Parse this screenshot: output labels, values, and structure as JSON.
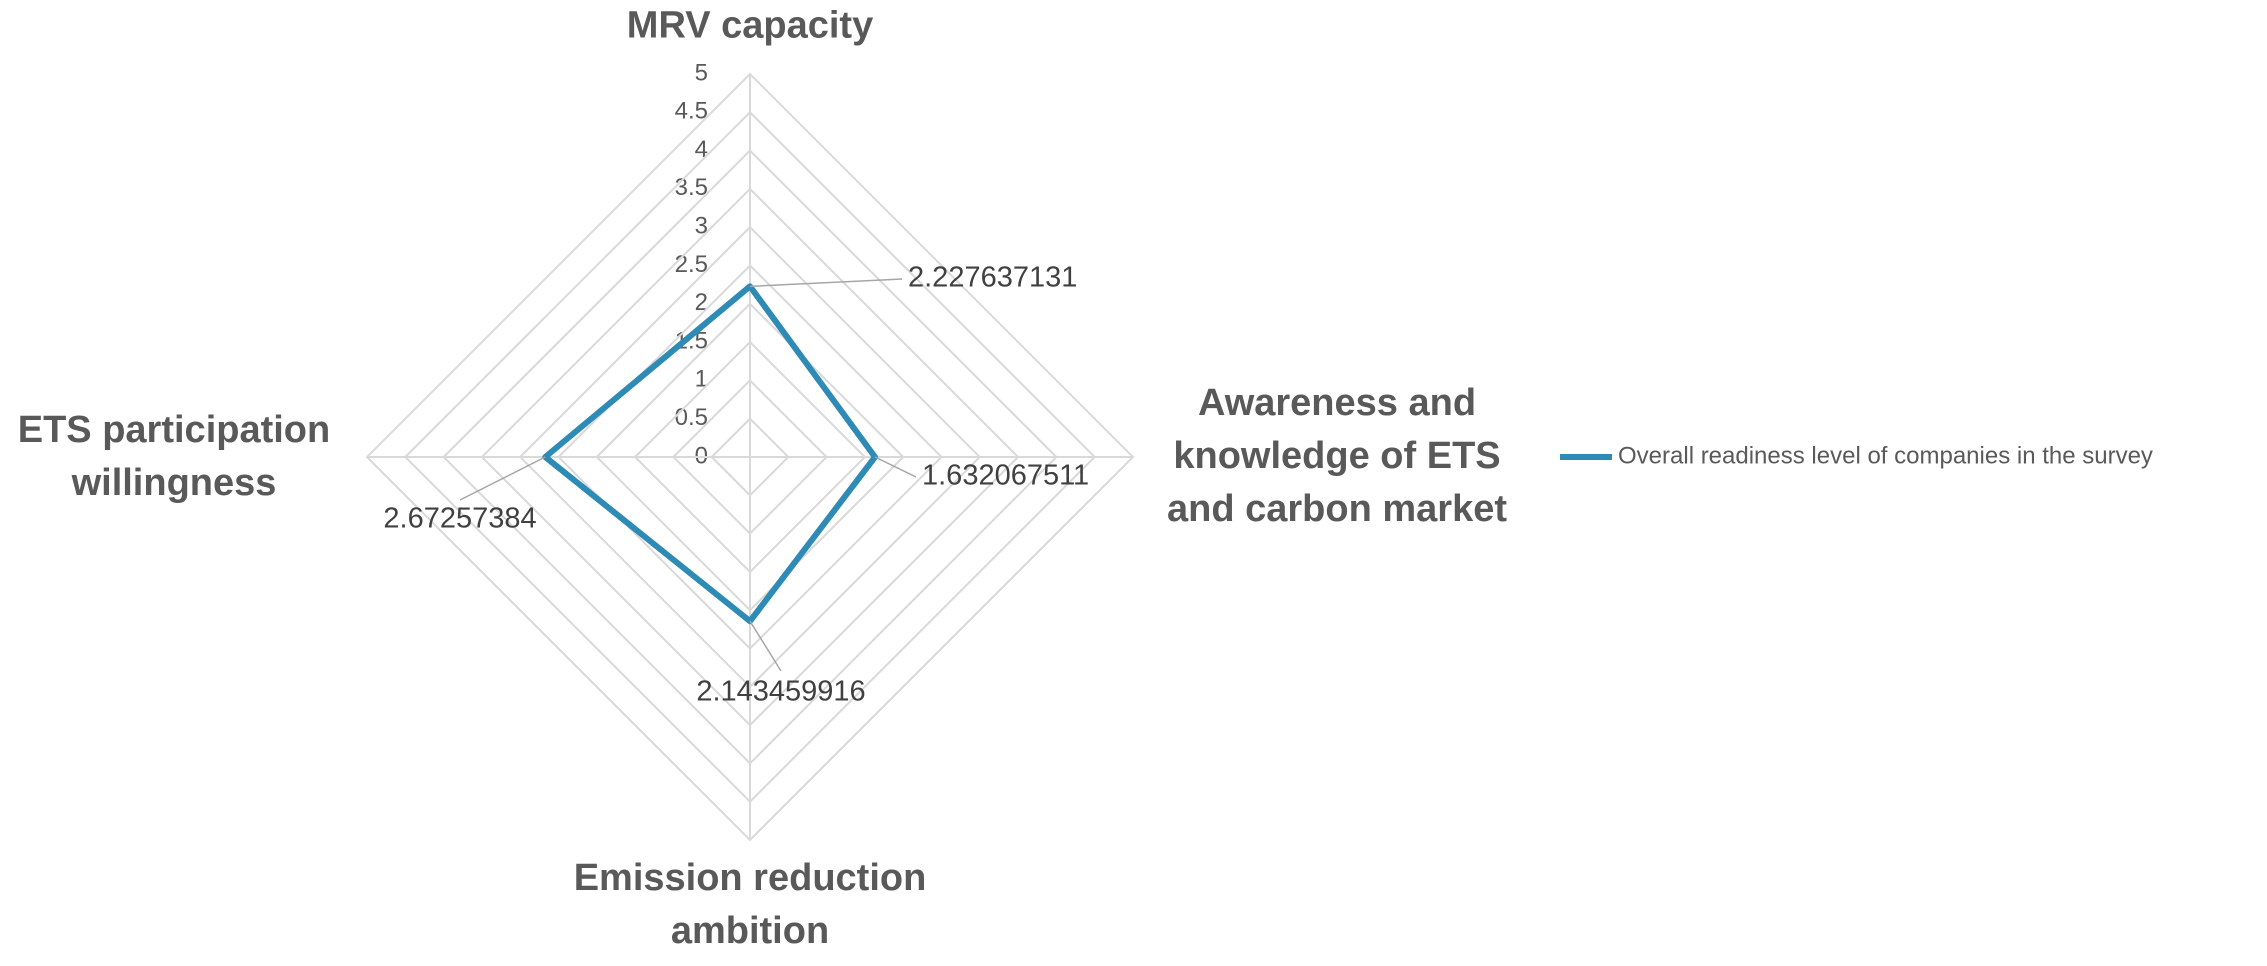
{
  "chart_data": {
    "type": "radar",
    "categories": [
      "MRV capacity",
      "Awareness and knowledge of ETS and carbon market",
      "Emission reduction ambition",
      "ETS participation willingness"
    ],
    "series": [
      {
        "name": "Overall readiness level of companies in the survey",
        "color": "#2e8bb5",
        "values": [
          2.227637131,
          1.632067511,
          2.143459916,
          2.67257384
        ]
      }
    ],
    "ylim": [
      0,
      5
    ],
    "yticks": [
      0,
      0.5,
      1,
      1.5,
      2,
      2.5,
      3,
      3.5,
      4,
      4.5,
      5
    ],
    "grid": true,
    "legend": "right"
  }
}
